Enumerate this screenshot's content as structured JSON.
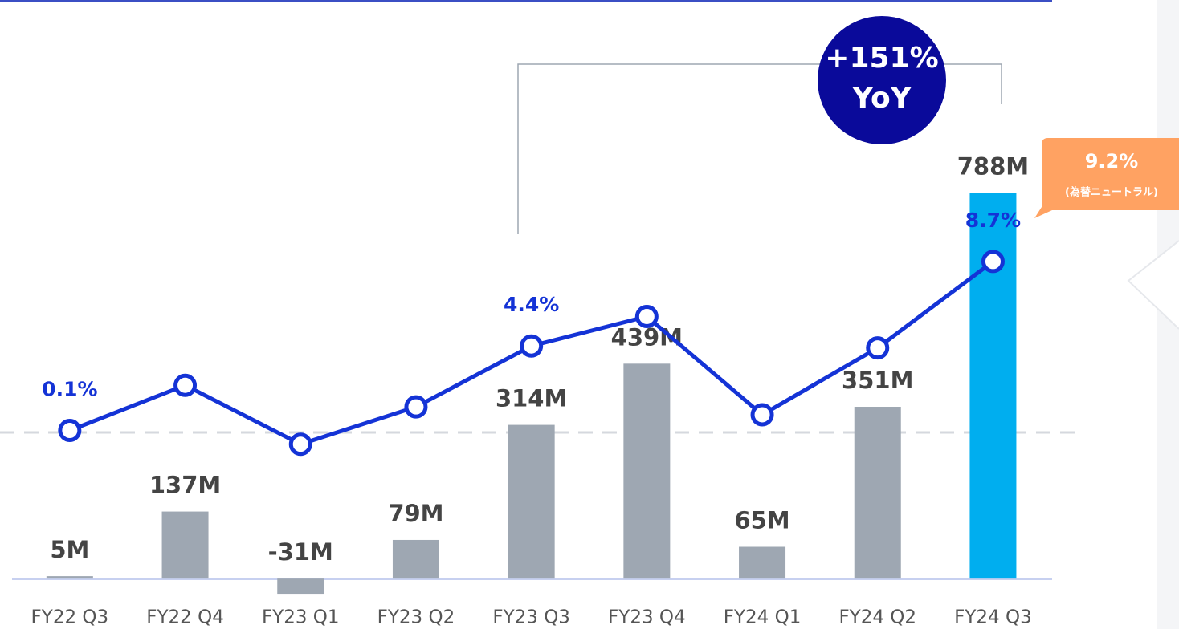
{
  "chart_data": {
    "type": "bar",
    "categories": [
      "FY22 Q3",
      "FY22 Q4",
      "FY23 Q1",
      "FY23 Q2",
      "FY23 Q3",
      "FY23 Q4",
      "FY24 Q1",
      "FY24 Q2",
      "FY24 Q3"
    ],
    "series": [
      {
        "type": "bar",
        "axis": "y",
        "colors": [
          "#9ea7b2",
          "#9ea7b2",
          "#9ea7b2",
          "#9ea7b2",
          "#9ea7b2",
          "#9ea7b2",
          "#9ea7b2",
          "#9ea7b2",
          "#00aeef"
        ],
        "values": [
          5,
          137,
          -31,
          79,
          314,
          439,
          65,
          351,
          788
        ],
        "value_labels": [
          "5M",
          "137M",
          "-31M",
          "79M",
          "314M",
          "439M",
          "65M",
          "351M",
          "788M"
        ]
      },
      {
        "type": "line",
        "axis": "y2",
        "color": "#1433d6",
        "values": [
          0.1,
          2.4,
          -0.6,
          1.3,
          4.4,
          5.9,
          0.9,
          4.3,
          8.7
        ],
        "value_labels": [
          "0.1%",
          null,
          null,
          null,
          "4.4%",
          null,
          null,
          null,
          "8.7%"
        ]
      }
    ],
    "ylim": [
      -103,
      1182
    ],
    "y2lim": [
      -10,
      22
    ],
    "reference_line": 0,
    "annotation": {
      "change": "+151%",
      "period": "YoY"
    },
    "callout": {
      "value": "9.2%",
      "note": "(為替ニュートラル)"
    }
  }
}
